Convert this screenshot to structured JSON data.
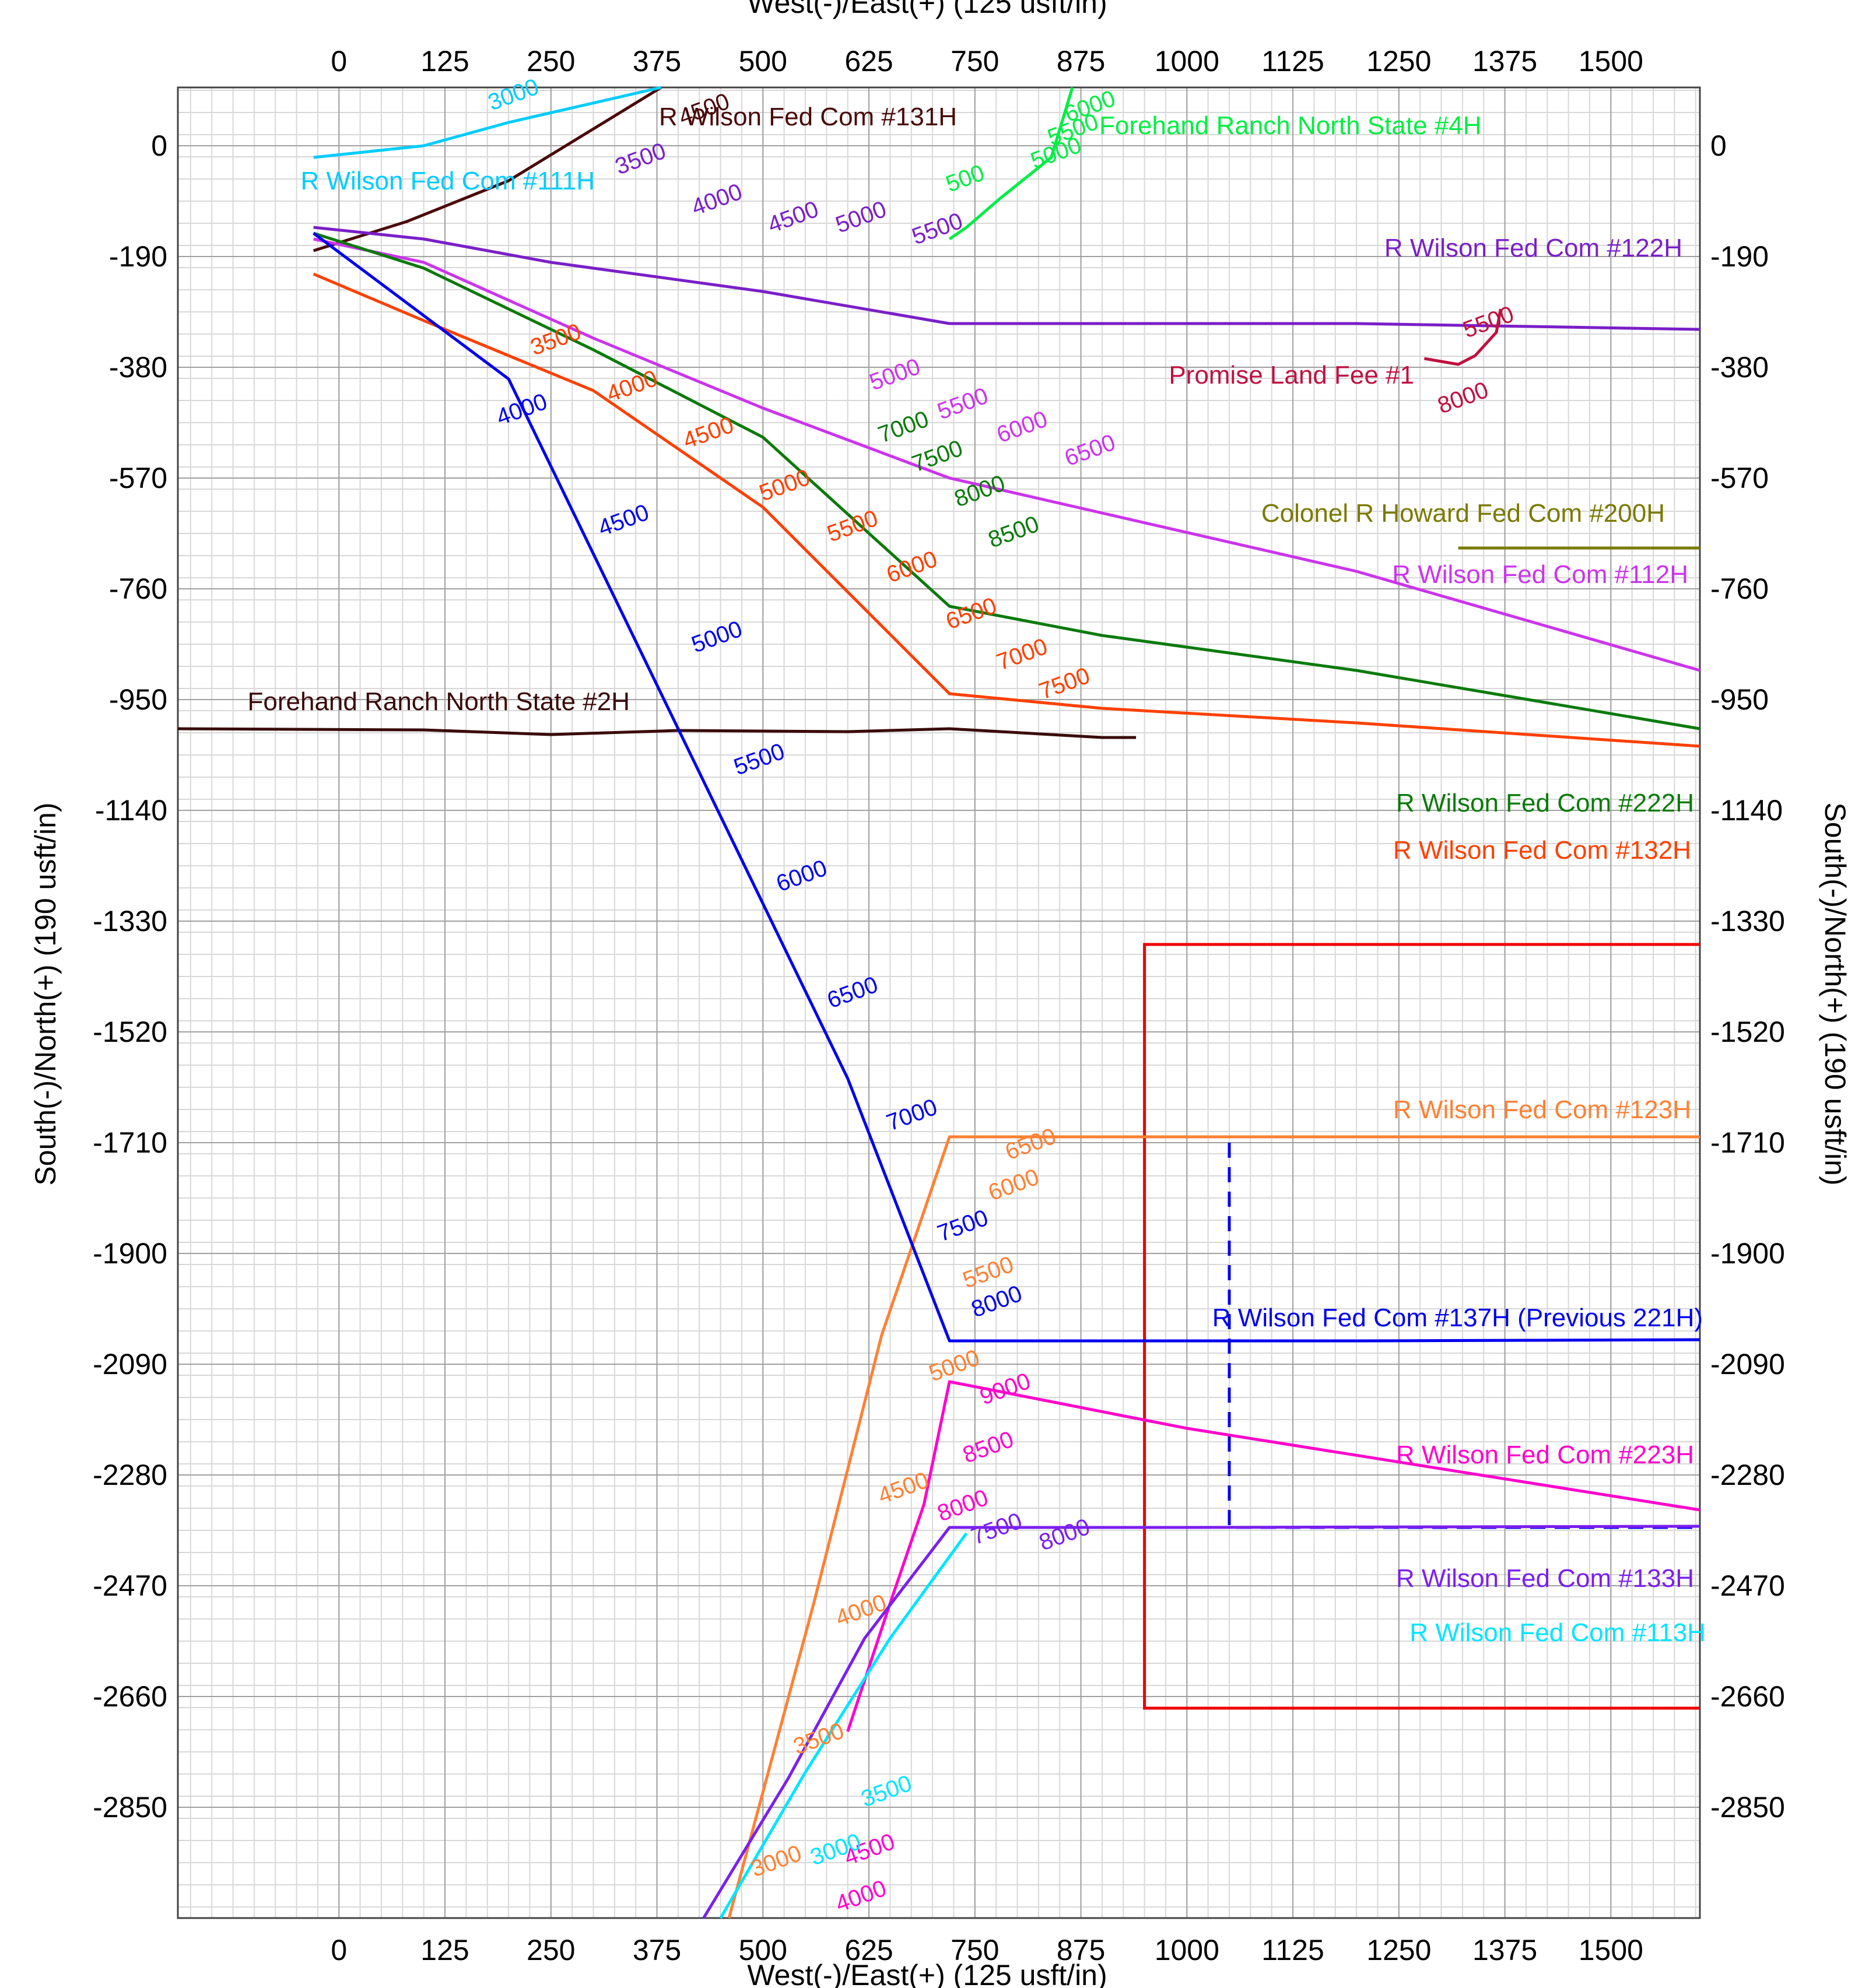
{
  "chart_data": {
    "type": "line",
    "xlabel": "West(-)/East(+) (125 usft/in)",
    "ylabel": "South(-)/North(+) (190 usft/in)",
    "xlim": [
      -190,
      1605
    ],
    "ylim": [
      -3040,
      100
    ],
    "x_ticks": [
      0,
      125,
      250,
      375,
      500,
      625,
      750,
      875,
      1000,
      1125,
      1250,
      1375,
      1500
    ],
    "y_ticks": [
      0,
      -190,
      -380,
      -570,
      -760,
      -950,
      -1140,
      -1330,
      -1520,
      -1710,
      -1900,
      -2090,
      -2280,
      -2470,
      -2660,
      -2850
    ],
    "grid": true,
    "series": [
      {
        "name": "R Wilson Fed Com #131H",
        "color": "#4a0a0a",
        "points": [
          [
            -30,
            -180
          ],
          [
            80,
            -130
          ],
          [
            200,
            -60
          ],
          [
            380,
            100
          ]
        ],
        "md_labels": [
          {
            "text": "4500",
            "x": 405,
            "y": 35
          }
        ]
      },
      {
        "name": "Forehand Ranch North State #4H",
        "color": "#00ee44",
        "points": [
          [
            720,
            -160
          ],
          [
            740,
            -140
          ],
          [
            780,
            -90
          ],
          [
            840,
            -20
          ],
          [
            865,
            100
          ]
        ],
        "md_labels": [
          {
            "text": "6000",
            "x": 860,
            "y": 40
          },
          {
            "text": "5500",
            "x": 840,
            "y": 0
          },
          {
            "text": "5000",
            "x": 820,
            "y": -40
          },
          {
            "text": "500",
            "x": 720,
            "y": -80
          }
        ]
      },
      {
        "name": "R Wilson Fed Com #122H",
        "color": "#7a1fc8",
        "points": [
          [
            -30,
            -140
          ],
          [
            100,
            -160
          ],
          [
            250,
            -200
          ],
          [
            500,
            -250
          ],
          [
            720,
            -305
          ],
          [
            900,
            -305
          ],
          [
            1200,
            -305
          ],
          [
            1605,
            -315
          ]
        ],
        "md_labels": [
          {
            "text": "3500",
            "x": 330,
            "y": -50
          },
          {
            "text": "4000",
            "x": 420,
            "y": -120
          },
          {
            "text": "4500",
            "x": 510,
            "y": -150
          },
          {
            "text": "5000",
            "x": 590,
            "y": -150
          },
          {
            "text": "5500",
            "x": 680,
            "y": -170
          }
        ]
      },
      {
        "name": "Promise Land Fee #1",
        "color": "#c01040",
        "points": [
          [
            1280,
            -365
          ],
          [
            1320,
            -375
          ],
          [
            1340,
            -360
          ],
          [
            1365,
            -320
          ],
          [
            1370,
            -280
          ]
        ],
        "md_labels": [
          {
            "text": "5500",
            "x": 1330,
            "y": -330
          },
          {
            "text": "8000",
            "x": 1300,
            "y": -460
          }
        ]
      },
      {
        "name": "Colonel R Howard Fed Com #200H",
        "color": "#7a7a00",
        "points": [
          [
            1320,
            -690
          ],
          [
            1605,
            -690
          ]
        ],
        "md_labels": []
      },
      {
        "name": "R Wilson Fed Com #112H",
        "color": "#cc33ee",
        "points": [
          [
            -30,
            -160
          ],
          [
            100,
            -200
          ],
          [
            300,
            -330
          ],
          [
            500,
            -450
          ],
          [
            720,
            -570
          ],
          [
            900,
            -630
          ],
          [
            1200,
            -730
          ],
          [
            1605,
            -900
          ]
        ],
        "md_labels": [
          {
            "text": "5000",
            "x": 630,
            "y": -420
          },
          {
            "text": "5500",
            "x": 710,
            "y": -470
          },
          {
            "text": "6000",
            "x": 780,
            "y": -510
          },
          {
            "text": "6500",
            "x": 860,
            "y": -550
          }
        ]
      },
      {
        "name": "Forehand Ranch North State #2H",
        "color": "#3a0a0a",
        "points": [
          [
            -190,
            -1000
          ],
          [
            100,
            -1002
          ],
          [
            250,
            -1010
          ],
          [
            400,
            -1003
          ],
          [
            600,
            -1005
          ],
          [
            720,
            -1000
          ],
          [
            900,
            -1015
          ],
          [
            940,
            -1015
          ]
        ],
        "md_labels": []
      },
      {
        "name": "R Wilson Fed Com #222H",
        "color": "#0a7a0a",
        "points": [
          [
            -30,
            -150
          ],
          [
            100,
            -210
          ],
          [
            300,
            -350
          ],
          [
            500,
            -500
          ],
          [
            720,
            -790
          ],
          [
            900,
            -840
          ],
          [
            1200,
            -900
          ],
          [
            1605,
            -1000
          ]
        ],
        "md_labels": [
          {
            "text": "7000",
            "x": 640,
            "y": -510
          },
          {
            "text": "7500",
            "x": 680,
            "y": -560
          },
          {
            "text": "8000",
            "x": 730,
            "y": -620
          },
          {
            "text": "8500",
            "x": 770,
            "y": -690
          }
        ]
      },
      {
        "name": "R Wilson Fed Com #132H",
        "color": "#ff4000",
        "points": [
          [
            -30,
            -220
          ],
          [
            100,
            -300
          ],
          [
            300,
            -420
          ],
          [
            500,
            -620
          ],
          [
            720,
            -940
          ],
          [
            900,
            -965
          ],
          [
            1200,
            -990
          ],
          [
            1605,
            -1030
          ]
        ],
        "md_labels": [
          {
            "text": "3500",
            "x": 230,
            "y": -360
          },
          {
            "text": "4000",
            "x": 320,
            "y": -440
          },
          {
            "text": "4500",
            "x": 410,
            "y": -520
          },
          {
            "text": "5000",
            "x": 500,
            "y": -610
          },
          {
            "text": "5500",
            "x": 580,
            "y": -680
          },
          {
            "text": "6000",
            "x": 650,
            "y": -750
          },
          {
            "text": "6500",
            "x": 720,
            "y": -830
          },
          {
            "text": "7000",
            "x": 780,
            "y": -900
          },
          {
            "text": "7500",
            "x": 830,
            "y": -950
          }
        ]
      },
      {
        "name": "R Wilson Fed Com #123H",
        "color": "#ff8033",
        "points": [
          [
            460,
            -3040
          ],
          [
            560,
            -2500
          ],
          [
            640,
            -2040
          ],
          [
            720,
            -1700
          ],
          [
            1000,
            -1700
          ],
          [
            1605,
            -1700
          ]
        ],
        "md_labels": [
          {
            "text": "6500",
            "x": 790,
            "y": -1740
          },
          {
            "text": "6000",
            "x": 770,
            "y": -1810
          },
          {
            "text": "5500",
            "x": 740,
            "y": -1960
          },
          {
            "text": "5000",
            "x": 700,
            "y": -2120
          },
          {
            "text": "4500",
            "x": 640,
            "y": -2330
          },
          {
            "text": "4000",
            "x": 590,
            "y": -2540
          },
          {
            "text": "3500",
            "x": 540,
            "y": -2760
          },
          {
            "text": "3000",
            "x": 490,
            "y": -2970
          }
        ]
      },
      {
        "name": "R Wilson Fed Com #137H (Previous 221H)",
        "color": "#0000ee",
        "points": [
          [
            -30,
            -150
          ],
          [
            200,
            -400
          ],
          [
            400,
            -1000
          ],
          [
            600,
            -1600
          ],
          [
            720,
            -2050
          ],
          [
            900,
            -2050
          ],
          [
            1200,
            -2050
          ],
          [
            1605,
            -2048
          ]
        ],
        "md_labels": [
          {
            "text": "4000",
            "x": 190,
            "y": -480
          },
          {
            "text": "4500",
            "x": 310,
            "y": -670
          },
          {
            "text": "5000",
            "x": 420,
            "y": -870
          },
          {
            "text": "5500",
            "x": 470,
            "y": -1080
          },
          {
            "text": "6000",
            "x": 520,
            "y": -1280
          },
          {
            "text": "6500",
            "x": 580,
            "y": -1480
          },
          {
            "text": "7000",
            "x": 650,
            "y": -1690
          },
          {
            "text": "7500",
            "x": 710,
            "y": -1880
          },
          {
            "text": "8000",
            "x": 750,
            "y": -2010
          }
        ]
      },
      {
        "name": "R Wilson Fed Com #223H",
        "color": "#ff00cc",
        "points": [
          [
            600,
            -2720
          ],
          [
            650,
            -2500
          ],
          [
            690,
            -2330
          ],
          [
            720,
            -2120
          ],
          [
            1000,
            -2200
          ],
          [
            1605,
            -2340
          ]
        ],
        "md_labels": [
          {
            "text": "9000",
            "x": 760,
            "y": -2160
          },
          {
            "text": "8500",
            "x": 740,
            "y": -2260
          },
          {
            "text": "8000",
            "x": 710,
            "y": -2360
          },
          {
            "text": "4500",
            "x": 600,
            "y": -2950
          },
          {
            "text": "4000",
            "x": 590,
            "y": -3030
          }
        ]
      },
      {
        "name": "R Wilson Fed Com #133H",
        "color": "#7a1fee",
        "points": [
          [
            430,
            -3040
          ],
          [
            530,
            -2800
          ],
          [
            620,
            -2560
          ],
          [
            720,
            -2370
          ],
          [
            1000,
            -2370
          ],
          [
            1605,
            -2368
          ]
        ],
        "md_labels": [
          {
            "text": "7500",
            "x": 750,
            "y": -2400
          },
          {
            "text": "8000",
            "x": 830,
            "y": -2410
          }
        ]
      },
      {
        "name": "R Wilson Fed Com #113H",
        "color": "#00e5ff",
        "points": [
          [
            450,
            -3040
          ],
          [
            550,
            -2790
          ],
          [
            650,
            -2560
          ],
          [
            740,
            -2380
          ]
        ],
        "md_labels": [
          {
            "text": "3500",
            "x": 620,
            "y": -2850
          },
          {
            "text": "3000",
            "x": 560,
            "y": -2950
          }
        ]
      },
      {
        "name": "R Wilson Fed Com #111H",
        "color": "#00ccff",
        "points": [
          [
            -30,
            -20
          ],
          [
            100,
            0
          ],
          [
            200,
            40
          ],
          [
            380,
            100
          ]
        ],
        "md_labels": [
          {
            "text": "3000",
            "x": 180,
            "y": 60
          }
        ]
      }
    ],
    "lease_boundary": {
      "color": "#ee0000",
      "x": [
        950,
        1605
      ],
      "y": [
        -2680,
        -1370
      ]
    },
    "dashed_line": {
      "color": "#0000ee",
      "points": [
        [
          1050,
          -1710
        ],
        [
          1050,
          -2370
        ],
        [
          1605,
          -2370
        ]
      ]
    }
  },
  "labels": {
    "x_title_top": "West(-)/East(+) (125 usft/in)",
    "x_title_bottom": "West(-)/East(+) (125 usft/in)",
    "y_title_left": "South(-)/North(+) (190 usft/in)",
    "y_title_right": "South(-)/North(+) (190 usft/in)"
  }
}
